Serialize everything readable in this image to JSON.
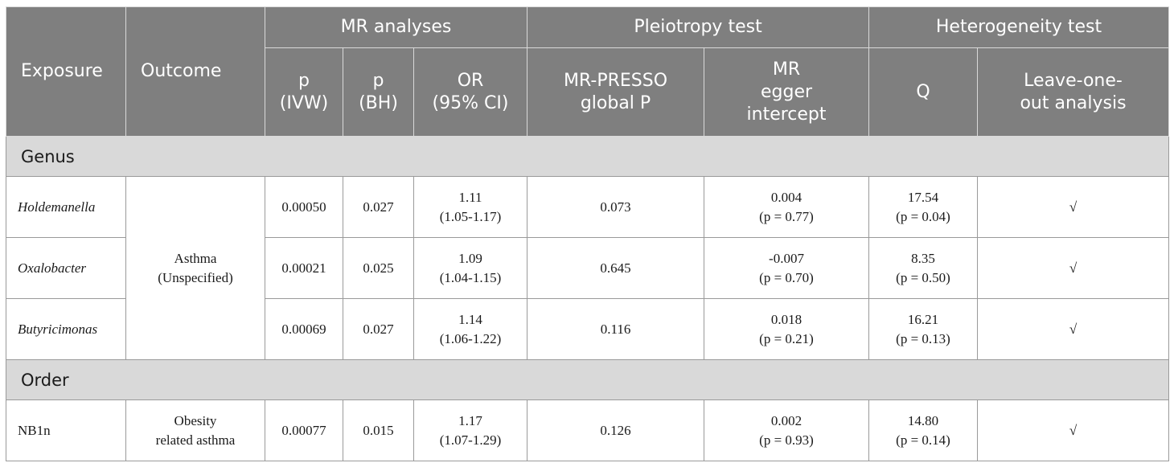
{
  "header": {
    "exposure": "Exposure",
    "outcome": "Outcome",
    "groups": {
      "mr_analyses": "MR analyses",
      "pleiotropy_test": "Pleiotropy test",
      "heterogeneity_test": "Heterogeneity test"
    },
    "sub": {
      "p_ivw": [
        "p",
        "(IVW)"
      ],
      "p_bh": [
        "p",
        "(BH)"
      ],
      "or_ci": [
        "OR",
        "(95% CI)"
      ],
      "mr_presso": [
        "MR-PRESSO",
        "global P"
      ],
      "mr_egger": [
        "MR",
        "egger",
        "intercept"
      ],
      "q": "Q",
      "leave_one_out": [
        "Leave-one-",
        "out analysis"
      ]
    }
  },
  "sections": [
    {
      "label": "Genus",
      "outcome": [
        "Asthma",
        "(Unspecified)"
      ],
      "rows": [
        {
          "exposure": "Holdemanella",
          "p_ivw": "0.00050",
          "p_bh": "0.027",
          "or": "1.11",
          "ci": "(1.05-1.17)",
          "presso": "0.073",
          "egger": "0.004",
          "egger_p": "(p = 0.77)",
          "q": "17.54",
          "q_p": "(p = 0.04)",
          "loo": "√"
        },
        {
          "exposure": "Oxalobacter",
          "p_ivw": "0.00021",
          "p_bh": "0.025",
          "or": "1.09",
          "ci": "(1.04-1.15)",
          "presso": "0.645",
          "egger": "-0.007",
          "egger_p": "(p = 0.70)",
          "q": "8.35",
          "q_p": "(p = 0.50)",
          "loo": "√"
        },
        {
          "exposure": "Butyricimonas",
          "p_ivw": "0.00069",
          "p_bh": "0.027",
          "or": "1.14",
          "ci": "(1.06-1.22)",
          "presso": "0.116",
          "egger": "0.018",
          "egger_p": "(p = 0.21)",
          "q": "16.21",
          "q_p": "(p = 0.13)",
          "loo": "√"
        }
      ]
    },
    {
      "label": "Order",
      "outcome": [
        "Obesity",
        "related asthma"
      ],
      "rows": [
        {
          "exposure": "NB1n",
          "p_ivw": "0.00077",
          "p_bh": "0.015",
          "or": "1.17",
          "ci": "(1.07-1.29)",
          "presso": "0.126",
          "egger": "0.002",
          "egger_p": "(p = 0.93)",
          "q": "14.80",
          "q_p": "(p = 0.14)",
          "loo": "√"
        }
      ]
    }
  ]
}
